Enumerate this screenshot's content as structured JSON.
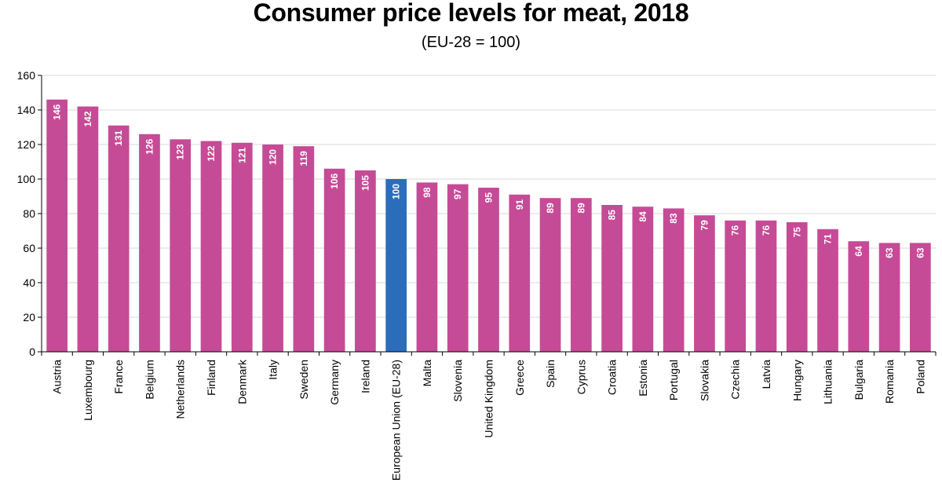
{
  "chart_data": {
    "type": "bar",
    "title": "Consumer price levels for meat, 2018",
    "subtitle": "(EU-28 = 100)",
    "xlabel": "",
    "ylabel": "",
    "ylim": [
      0,
      160
    ],
    "yticks": [
      0,
      20,
      40,
      60,
      80,
      100,
      120,
      140,
      160
    ],
    "grid": true,
    "legend": "none",
    "categories": [
      "Austria",
      "Luxembourg",
      "France",
      "Belgium",
      "Netherlands",
      "Finland",
      "Denmark",
      "Italy",
      "Sweden",
      "Germany",
      "Ireland",
      "European Union (EU-28)",
      "Malta",
      "Slovenia",
      "United Kingdom",
      "Greece",
      "Spain",
      "Cyprus",
      "Croatia",
      "Estonia",
      "Portugal",
      "Slovakia",
      "Czechia",
      "Latvia",
      "Hungary",
      "Lithuania",
      "Bulgaria",
      "Romania",
      "Poland"
    ],
    "values": [
      146,
      142,
      131,
      126,
      123,
      122,
      121,
      120,
      119,
      106,
      105,
      100,
      98,
      97,
      95,
      91,
      89,
      89,
      85,
      84,
      83,
      79,
      76,
      76,
      75,
      71,
      64,
      63,
      63
    ],
    "data_labels": [
      "146",
      "142",
      "131",
      "126",
      "123",
      "122",
      "121",
      "120",
      "119",
      "106",
      "105",
      "100",
      "98",
      "97",
      "95",
      "91",
      "89",
      "89",
      "85",
      "84",
      "83",
      "79",
      "76",
      "76",
      "75",
      "71",
      "64",
      "63",
      "63"
    ],
    "highlight_category": "European Union (EU-28)",
    "colors": {
      "bar": "#c64b96",
      "highlight": "#2a6ebb",
      "grid": "#d9d9d9",
      "axis": "#000000"
    }
  }
}
